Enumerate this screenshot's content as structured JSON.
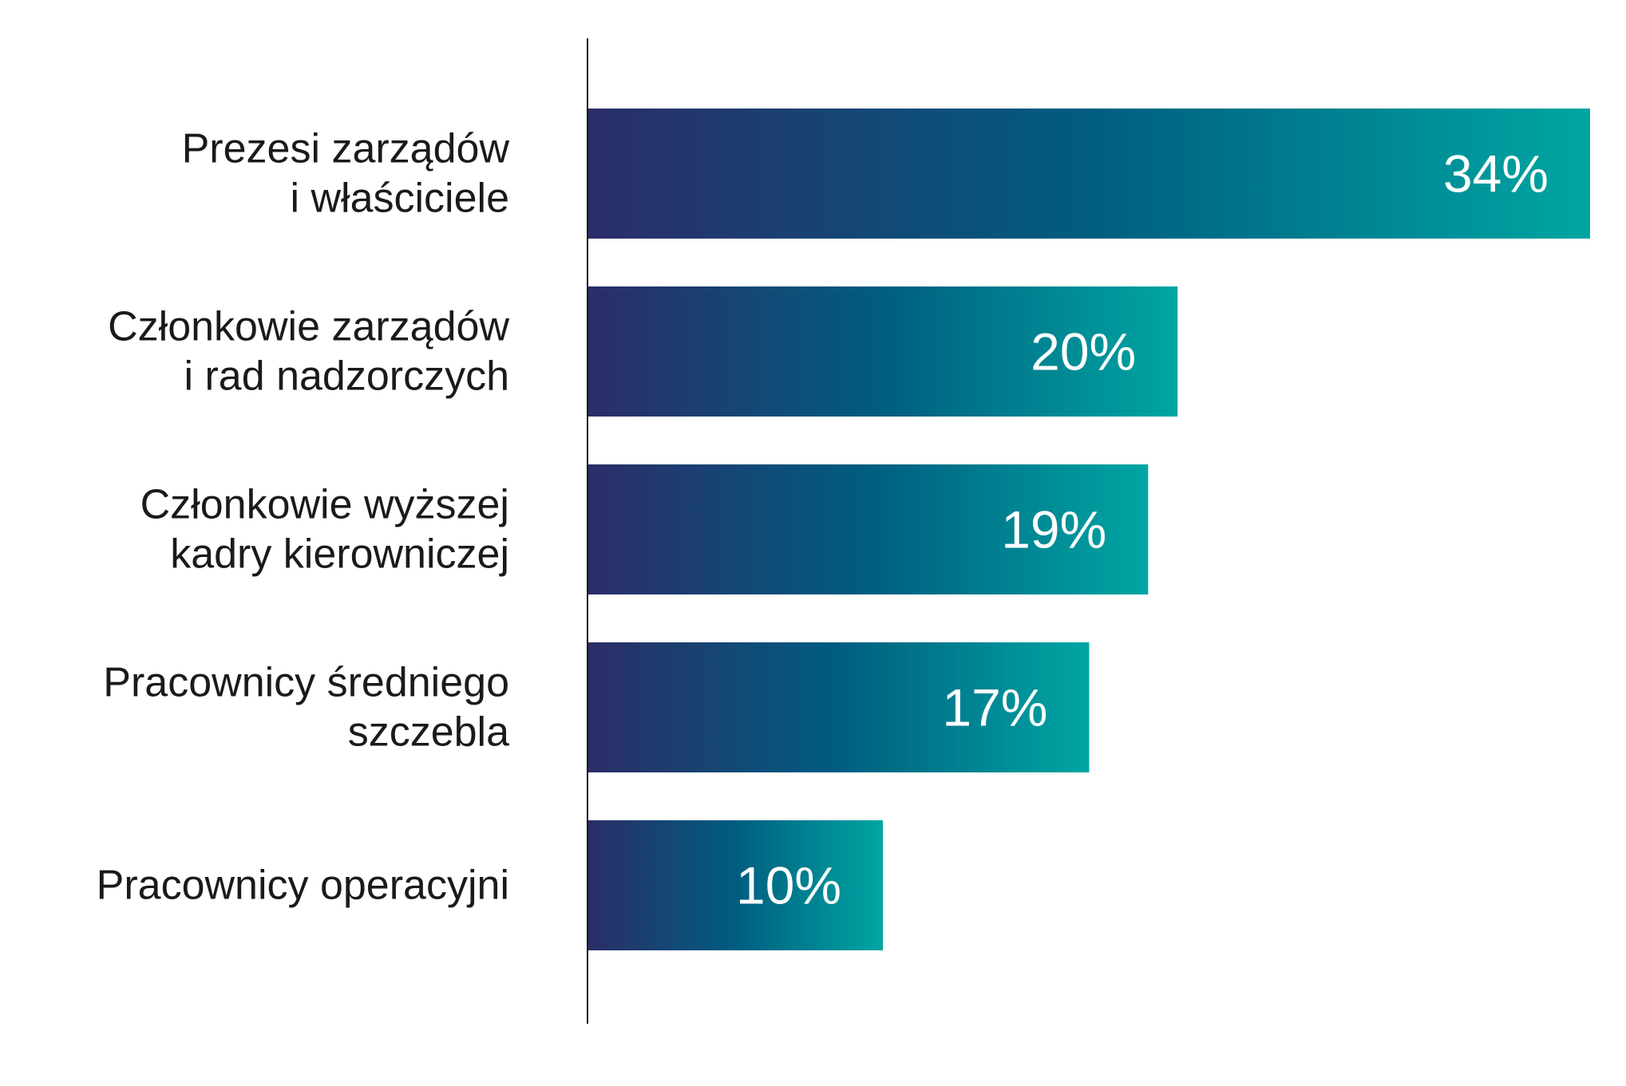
{
  "chart_data": {
    "type": "bar",
    "orientation": "horizontal",
    "categories": [
      [
        "Prezesi zarządów",
        "i właściciele"
      ],
      [
        "Członkowie zarządów",
        "i rad nadzorczych"
      ],
      [
        "Członkowie wyższej",
        "kadry kierowniczej"
      ],
      [
        "Pracownicy średniego",
        "szczebla"
      ],
      [
        "Pracownicy operacyjni"
      ]
    ],
    "values": [
      34,
      20,
      19,
      17,
      10
    ],
    "value_labels": [
      "34%",
      "20%",
      "19%",
      "17%",
      "10%"
    ],
    "xlim": [
      0,
      34
    ],
    "grid": false,
    "legend": "none",
    "colors": {
      "bar_gradient_start": "#2b2d68",
      "bar_gradient_mid": "#005d80",
      "bar_gradient_end": "#00a6a2",
      "axis_line": "#1a1a1a",
      "category_text": "#1a1a1a",
      "value_text": "#ffffff"
    }
  }
}
